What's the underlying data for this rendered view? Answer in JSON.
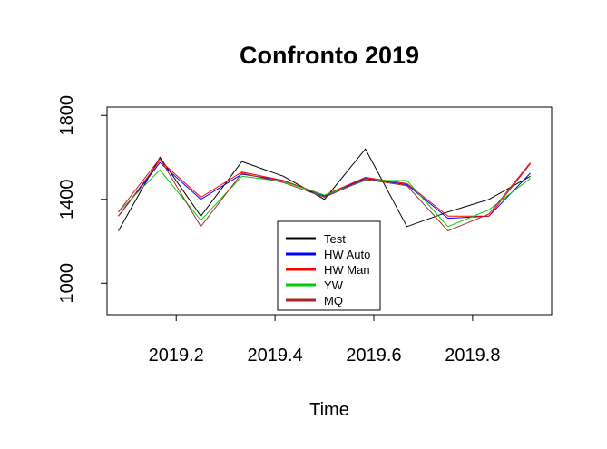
{
  "chart_data": {
    "type": "line",
    "title": "Confronto 2019",
    "xlabel": "Time",
    "ylabel": "",
    "xlim": [
      2019.06,
      2019.96
    ],
    "ylim": [
      850,
      1840
    ],
    "xticks": [
      2019.2,
      2019.4,
      2019.6,
      2019.8
    ],
    "xtick_labels": [
      "2019.2",
      "2019.4",
      "2019.6",
      "2019.8"
    ],
    "yticks": [
      1000,
      1400,
      1800
    ],
    "ytick_labels": [
      "1000",
      "1400",
      "1800"
    ],
    "legend_position": "bottom-center",
    "x": [
      2019.083,
      2019.167,
      2019.25,
      2019.333,
      2019.417,
      2019.5,
      2019.583,
      2019.667,
      2019.75,
      2019.833,
      2019.917
    ],
    "series": [
      {
        "name": "Test",
        "color": "#000000",
        "legend_color": "#000000",
        "values": [
          1250,
          1600,
          1320,
          1580,
          1510,
          1400,
          1640,
          1270,
          1340,
          1400,
          1510
        ]
      },
      {
        "name": "HW Auto",
        "color": "#0000ff",
        "legend_color": "#0000ff",
        "values": [
          1320,
          1575,
          1400,
          1520,
          1490,
          1415,
          1500,
          1470,
          1310,
          1320,
          1525
        ]
      },
      {
        "name": "HW Man",
        "color": "#ff0000",
        "legend_color": "#ff0000",
        "values": [
          1320,
          1585,
          1410,
          1530,
          1490,
          1420,
          1505,
          1475,
          1320,
          1320,
          1570
        ]
      },
      {
        "name": "YW",
        "color": "#00cd00",
        "legend_color": "#00cd00",
        "values": [
          1340,
          1540,
          1300,
          1510,
          1485,
          1420,
          1490,
          1490,
          1270,
          1350,
          1500
        ]
      },
      {
        "name": "MQ",
        "color": "#a52a2a",
        "legend_color": "#b22222",
        "values": [
          1340,
          1595,
          1270,
          1525,
          1480,
          1410,
          1495,
          1465,
          1250,
          1330,
          1575
        ]
      }
    ]
  }
}
